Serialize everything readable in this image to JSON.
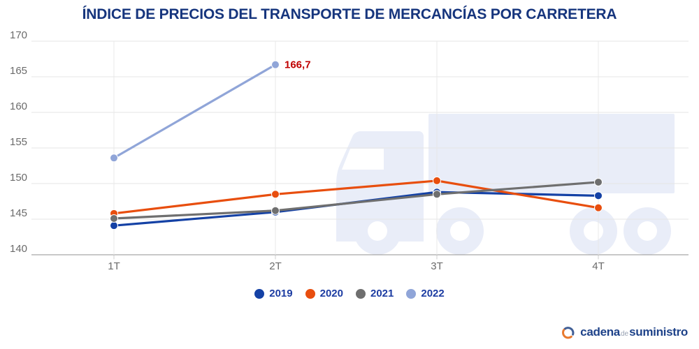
{
  "title": "ÍNDICE DE PRECIOS DEL TRANSPORTE DE MERCANCÍAS POR CARRETERA",
  "chart_data": {
    "type": "line",
    "categories": [
      "1T",
      "2T",
      "3T",
      "4T"
    ],
    "series": [
      {
        "name": "2019",
        "color": "#1441a5",
        "values": [
          144.1,
          146.0,
          148.8,
          148.3
        ]
      },
      {
        "name": "2020",
        "color": "#e84e0e",
        "values": [
          145.8,
          148.5,
          150.4,
          146.6
        ]
      },
      {
        "name": "2021",
        "color": "#6f6f6f",
        "values": [
          145.1,
          146.2,
          148.5,
          150.2
        ]
      },
      {
        "name": "2022",
        "color": "#90a5d8",
        "values": [
          153.6,
          166.7,
          null,
          null
        ]
      }
    ],
    "ylim": [
      140,
      170
    ],
    "ytick_step": 5,
    "grid": true,
    "legend_position": "bottom",
    "annotation": {
      "text": "166,7",
      "series": "2022",
      "category_index": 1,
      "color": "#c00000"
    }
  },
  "axis_style": {
    "tick_label_color": "#6b6b6b",
    "gridline_color": "#e5e5e5",
    "axis_line_color": "#a6a6a6",
    "watermark_color": "#e9edf8"
  },
  "branding": {
    "word1": "cadena",
    "word2": "de",
    "word3": "suministro",
    "icon_blue": "#415f96",
    "icon_orange": "#e87a2e"
  }
}
